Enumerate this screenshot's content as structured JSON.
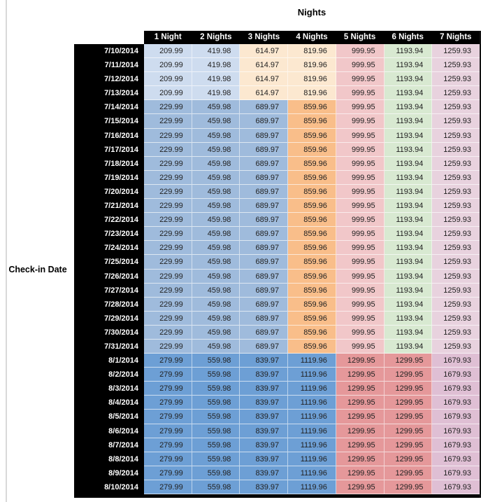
{
  "colors": {
    "header_bg": "#000000",
    "header_text": "#ffffff",
    "value_text": "#212121",
    "early_blue": "#cedcef",
    "mid_blue": "#9fbbdc",
    "late_blue": "#6d9fd5",
    "early_orange": "#fce8d0",
    "mid_orange": "#f9be8a",
    "rose": "#f1c7c9",
    "green": "#d8e9d1",
    "light_mauve": "#e8d2de",
    "late_red": "#e5989a",
    "late_mauve": "#dfbfd4"
  },
  "chart_data": {
    "type": "table",
    "title": "Nights",
    "row_axis_label": "Check-in Date",
    "columns": [
      "1 Night",
      "2 Nights",
      "3 Nights",
      "4 Nights",
      "5 Nights",
      "6 Nights",
      "7 Nights"
    ],
    "bands": {
      "early": {
        "values": [
          "209.99",
          "419.98",
          "614.97",
          "819.96",
          "999.95",
          "1193.94",
          "1259.93"
        ],
        "cell_colors": [
          "#cedcef",
          "#cedcef",
          "#fce8d0",
          "#fce8d0",
          "#f1c7c9",
          "#d8e9d1",
          "#e8d2de"
        ]
      },
      "mid": {
        "values": [
          "229.99",
          "459.98",
          "689.97",
          "859.96",
          "999.95",
          "1193.94",
          "1259.93"
        ],
        "cell_colors": [
          "#9fbbdc",
          "#9fbbdc",
          "#9fbbdc",
          "#f9be8a",
          "#f1c7c9",
          "#d8e9d1",
          "#e8d2de"
        ]
      },
      "late": {
        "values": [
          "279.99",
          "559.98",
          "839.97",
          "1119.96",
          "1299.95",
          "1299.95",
          "1679.93"
        ],
        "cell_colors": [
          "#6d9fd5",
          "#6d9fd5",
          "#6d9fd5",
          "#6d9fd5",
          "#e5989a",
          "#e5989a",
          "#dfbfd4"
        ]
      }
    },
    "rows": [
      {
        "date": "7/10/2014",
        "band": "early"
      },
      {
        "date": "7/11/2014",
        "band": "early"
      },
      {
        "date": "7/12/2014",
        "band": "early"
      },
      {
        "date": "7/13/2014",
        "band": "early"
      },
      {
        "date": "7/14/2014",
        "band": "mid"
      },
      {
        "date": "7/15/2014",
        "band": "mid"
      },
      {
        "date": "7/16/2014",
        "band": "mid"
      },
      {
        "date": "7/17/2014",
        "band": "mid"
      },
      {
        "date": "7/18/2014",
        "band": "mid"
      },
      {
        "date": "7/19/2014",
        "band": "mid"
      },
      {
        "date": "7/20/2014",
        "band": "mid"
      },
      {
        "date": "7/21/2014",
        "band": "mid"
      },
      {
        "date": "7/22/2014",
        "band": "mid"
      },
      {
        "date": "7/23/2014",
        "band": "mid"
      },
      {
        "date": "7/24/2014",
        "band": "mid"
      },
      {
        "date": "7/25/2014",
        "band": "mid"
      },
      {
        "date": "7/26/2014",
        "band": "mid"
      },
      {
        "date": "7/27/2014",
        "band": "mid"
      },
      {
        "date": "7/28/2014",
        "band": "mid"
      },
      {
        "date": "7/29/2014",
        "band": "mid"
      },
      {
        "date": "7/30/2014",
        "band": "mid"
      },
      {
        "date": "7/31/2014",
        "band": "mid"
      },
      {
        "date": "8/1/2014",
        "band": "late"
      },
      {
        "date": "8/2/2014",
        "band": "late"
      },
      {
        "date": "8/3/2014",
        "band": "late"
      },
      {
        "date": "8/4/2014",
        "band": "late"
      },
      {
        "date": "8/5/2014",
        "band": "late"
      },
      {
        "date": "8/6/2014",
        "band": "late"
      },
      {
        "date": "8/7/2014",
        "band": "late"
      },
      {
        "date": "8/8/2014",
        "band": "late"
      },
      {
        "date": "8/9/2014",
        "band": "late"
      },
      {
        "date": "8/10/2014",
        "band": "late"
      }
    ]
  }
}
